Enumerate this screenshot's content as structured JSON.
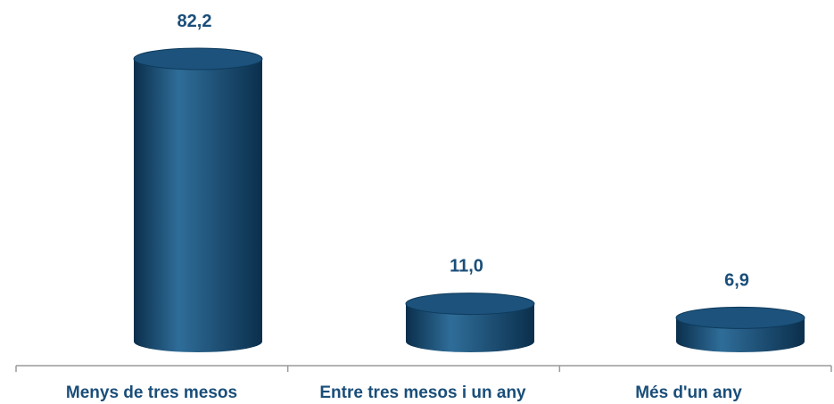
{
  "chart_data": {
    "type": "bar",
    "style": "3d-cylinder",
    "categories": [
      "Menys de tres mesos",
      "Entre tres mesos i un any",
      "Més d'un any"
    ],
    "values": [
      82.2,
      11.0,
      6.9
    ],
    "value_labels": [
      "82,2",
      "11,0",
      "6,9"
    ],
    "title": "",
    "xlabel": "",
    "ylabel": "",
    "ylim": [
      0,
      82.2
    ],
    "grid": false,
    "legend": "none"
  },
  "colors": {
    "bar_body": "#14466b",
    "bar_body_light": "#2f6d99",
    "bar_body_dark": "#0b2f4c",
    "bar_top": "#1c527b",
    "label_text": "#1a4e79",
    "axis": "#9a9a9a"
  }
}
